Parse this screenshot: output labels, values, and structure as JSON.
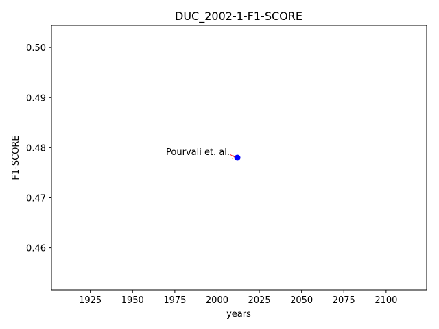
{
  "chart_data": {
    "type": "scatter",
    "title": "DUC_2002-1-F1-SCORE",
    "xlabel": "years",
    "ylabel": "F1-SCORE",
    "xlim": [
      1902,
      2124
    ],
    "ylim": [
      0.4516,
      0.5044
    ],
    "xticks": [
      1925,
      1950,
      1975,
      2000,
      2025,
      2050,
      2075,
      2100
    ],
    "yticks": [
      0.46,
      0.47,
      0.48,
      0.49,
      0.5
    ],
    "ytick_labels": [
      "0.46",
      "0.47",
      "0.48",
      "0.49",
      "0.50"
    ],
    "grid": false,
    "point_color": "#0000ff",
    "arrow_color": "#ff0000",
    "points": [
      {
        "x": 2012,
        "y": 0.478,
        "label": "Pourvali et. al."
      }
    ]
  }
}
